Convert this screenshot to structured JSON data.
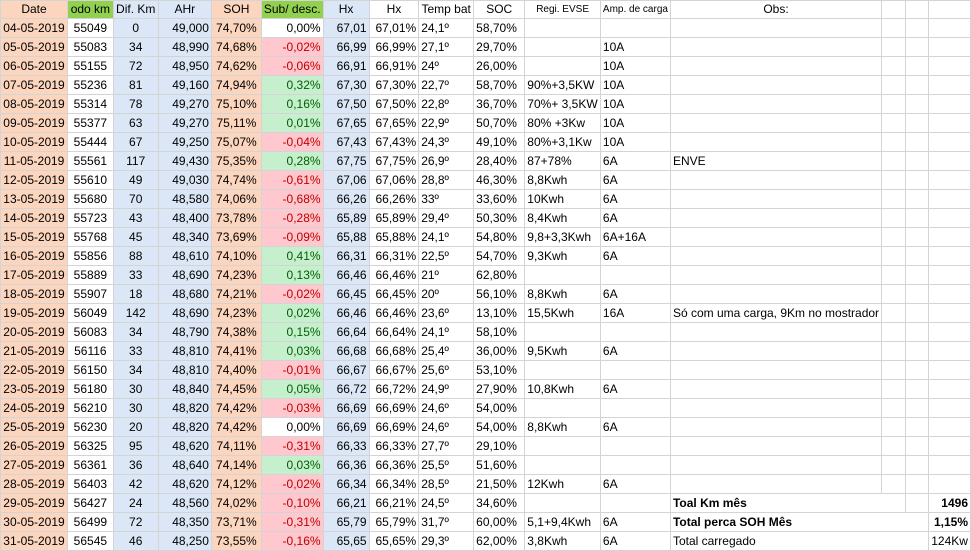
{
  "colors": {
    "date_bg": "#fbd5bd",
    "odo_hdr_bg": "#92d050",
    "dif_bg": "#dbe7f6",
    "ahr_bg": "#dbe7f6",
    "soh_bg": "#fbd5bd",
    "sub_hdr_bg": "#92d050",
    "sub_neg_bg": "#ffc7ce",
    "sub_pos_bg": "#c6efce",
    "sub_neg_fg": "#c00000",
    "sub_pos_fg": "#006100",
    "hx_bg": "#dbe7f6",
    "hx2_bg": "#dbe7f6",
    "temp_bg": "#fbd5bd"
  },
  "headers": [
    "Date",
    "odo km",
    "Dif. Km",
    "AHr",
    "SOH",
    "Sub/ desc.",
    "Hx",
    "Hx",
    "Temp bat",
    "SOC",
    "Regi. EVSE",
    "Amp. de carga",
    "Obs:"
  ],
  "rows": [
    [
      "04-05-2019",
      "55049",
      "0",
      "49,000",
      "74,70%",
      "0,00%",
      "67,01",
      "67,01%",
      "24,1º",
      "58,70%",
      "",
      "",
      ""
    ],
    [
      "05-05-2019",
      "55083",
      "34",
      "48,990",
      "74,68%",
      "-0,02%",
      "66,99",
      "66,99%",
      "27,1º",
      "29,70%",
      "",
      "10A",
      ""
    ],
    [
      "06-05-2019",
      "55155",
      "72",
      "48,950",
      "74,62%",
      "-0,06%",
      "66,91",
      "66,91%",
      "24º",
      "26,00%",
      "",
      "10A",
      ""
    ],
    [
      "07-05-2019",
      "55236",
      "81",
      "49,160",
      "74,94%",
      "0,32%",
      "67,30",
      "67,30%",
      "22,7º",
      "58,70%",
      "90%+3,5KW",
      "10A",
      ""
    ],
    [
      "08-05-2019",
      "55314",
      "78",
      "49,270",
      "75,10%",
      "0,16%",
      "67,50",
      "67,50%",
      "22,8º",
      "36,70%",
      "70%+ 3,5KW",
      "10A",
      ""
    ],
    [
      "09-05-2019",
      "55377",
      "63",
      "49,270",
      "75,11%",
      "0,01%",
      "67,65",
      "67,65%",
      "22,9º",
      "50,70%",
      "80% +3Kw",
      "10A",
      ""
    ],
    [
      "10-05-2019",
      "55444",
      "67",
      "49,250",
      "75,07%",
      "-0,04%",
      "67,43",
      "67,43%",
      "24,3º",
      "49,10%",
      "80%+3,1Kw",
      "10A",
      ""
    ],
    [
      "11-05-2019",
      "55561",
      "117",
      "49,430",
      "75,35%",
      "0,28%",
      "67,75",
      "67,75%",
      "26,9º",
      "28,40%",
      "87+78%",
      "6A",
      "ENVE"
    ],
    [
      "12-05-2019",
      "55610",
      "49",
      "49,030",
      "74,74%",
      "-0,61%",
      "67,06",
      "67,06%",
      "28,8º",
      "46,30%",
      "8,8Kwh",
      "6A",
      ""
    ],
    [
      "13-05-2019",
      "55680",
      "70",
      "48,580",
      "74,06%",
      "-0,68%",
      "66,26",
      "66,26%",
      "33º",
      "33,60%",
      "10Kwh",
      "6A",
      ""
    ],
    [
      "14-05-2019",
      "55723",
      "43",
      "48,400",
      "73,78%",
      "-0,28%",
      "65,89",
      "65,89%",
      "29,4º",
      "50,30%",
      "8,4Kwh",
      "6A",
      ""
    ],
    [
      "15-05-2019",
      "55768",
      "45",
      "48,340",
      "73,69%",
      "-0,09%",
      "65,88",
      "65,88%",
      "24,1º",
      "54,80%",
      "9,8+3,3Kwh",
      "6A+16A",
      ""
    ],
    [
      "16-05-2019",
      "55856",
      "88",
      "48,610",
      "74,10%",
      "0,41%",
      "66,31",
      "66,31%",
      "22,5º",
      "54,70%",
      "9,3Kwh",
      "6A",
      ""
    ],
    [
      "17-05-2019",
      "55889",
      "33",
      "48,690",
      "74,23%",
      "0,13%",
      "66,46",
      "66,46%",
      "21º",
      "62,80%",
      "",
      "",
      ""
    ],
    [
      "18-05-2019",
      "55907",
      "18",
      "48,680",
      "74,21%",
      "-0,02%",
      "66,45",
      "66,45%",
      "20º",
      "56,10%",
      "8,8Kwh",
      "6A",
      ""
    ],
    [
      "19-05-2019",
      "56049",
      "142",
      "48,690",
      "74,23%",
      "0,02%",
      "66,46",
      "66,46%",
      "23,6º",
      "13,10%",
      "15,5Kwh",
      "16A",
      "Só com uma carga, 9Km no mostrador"
    ],
    [
      "20-05-2019",
      "56083",
      "34",
      "48,790",
      "74,38%",
      "0,15%",
      "66,64",
      "66,64%",
      "24,1º",
      "58,10%",
      "",
      "",
      ""
    ],
    [
      "21-05-2019",
      "56116",
      "33",
      "48,810",
      "74,41%",
      "0,03%",
      "66,68",
      "66,68%",
      "25,4º",
      "36,00%",
      "9,5Kwh",
      "6A",
      ""
    ],
    [
      "22-05-2019",
      "56150",
      "34",
      "48,810",
      "74,40%",
      "-0,01%",
      "66,67",
      "66,67%",
      "25,6º",
      "53,10%",
      "",
      "",
      ""
    ],
    [
      "23-05-2019",
      "56180",
      "30",
      "48,840",
      "74,45%",
      "0,05%",
      "66,72",
      "66,72%",
      "24,9º",
      "27,90%",
      "10,8Kwh",
      "6A",
      ""
    ],
    [
      "24-05-2019",
      "56210",
      "30",
      "48,820",
      "74,42%",
      "-0,03%",
      "66,69",
      "66,69%",
      "24,6º",
      "54,00%",
      "",
      "",
      ""
    ],
    [
      "25-05-2019",
      "56230",
      "20",
      "48,820",
      "74,42%",
      "0,00%",
      "66,69",
      "66,69%",
      "24,6º",
      "54,00%",
      "8,8Kwh",
      "6A",
      ""
    ],
    [
      "26-05-2019",
      "56325",
      "95",
      "48,620",
      "74,11%",
      "-0,31%",
      "66,33",
      "66,33%",
      "27,7º",
      "29,10%",
      "",
      "",
      ""
    ],
    [
      "27-05-2019",
      "56361",
      "36",
      "48,640",
      "74,14%",
      "0,03%",
      "66,36",
      "66,36%",
      "25,5º",
      "51,60%",
      "",
      "",
      ""
    ],
    [
      "28-05-2019",
      "56403",
      "42",
      "48,620",
      "74,12%",
      "-0,02%",
      "66,34",
      "66,34%",
      "28,5º",
      "21,50%",
      "12Kwh",
      "6A",
      ""
    ],
    [
      "29-05-2019",
      "56427",
      "24",
      "48,560",
      "74,02%",
      "-0,10%",
      "66,21",
      "66,21%",
      "24,5º",
      "34,60%",
      "",
      "",
      ""
    ],
    [
      "30-05-2019",
      "56499",
      "72",
      "48,350",
      "73,71%",
      "-0,31%",
      "65,79",
      "65,79%",
      "31,7º",
      "60,00%",
      "5,1+9,4Kwh",
      "6A",
      ""
    ],
    [
      "31-05-2019",
      "56545",
      "46",
      "48,250",
      "73,55%",
      "-0,16%",
      "65,65",
      "65,65%",
      "29,3º",
      "62,00%",
      "3,8Kwh",
      "6A",
      ""
    ]
  ],
  "summary": {
    "km_label": "Toal Km mês",
    "km_value": "1496",
    "soh_label": "Total perca SOH Mês",
    "soh_value": "1,15%",
    "charged_label": "Total carregado",
    "charged_value": "124Kw"
  }
}
